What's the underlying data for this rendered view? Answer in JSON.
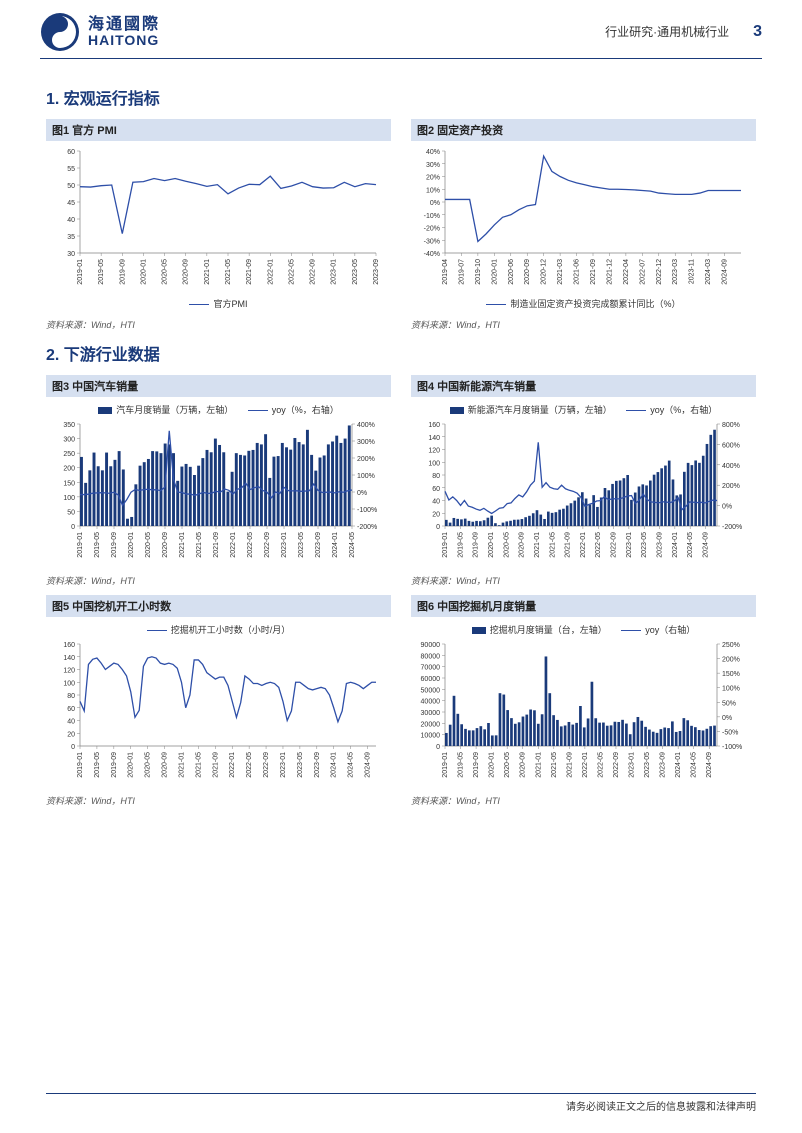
{
  "header": {
    "logo_cn": "海通國際",
    "logo_en": "HAITONG",
    "breadcrumb": "行业研究·通用机械行业",
    "page": "3"
  },
  "colors": {
    "brand": "#1a3a7a",
    "chart_line": "#2e4fa8",
    "chart_bar": "#1a3a7a",
    "title_bar_bg": "#d6e0f0",
    "grid": "#d0d0d0",
    "axis": "#808080",
    "text": "#333333"
  },
  "section1": {
    "title": "1. 宏观运行指标"
  },
  "section2": {
    "title": "2. 下游行业数据"
  },
  "footer": {
    "text": "请务必阅读正文之后的信息披露和法律声明"
  },
  "charts": {
    "c1": {
      "title": "图1  官方 PMI",
      "legend_line": "官方PMI",
      "source": "资料来源：Wind，HTI",
      "type": "line",
      "ylim": [
        30,
        60
      ],
      "ytick_step": 5,
      "x_labels": [
        "2019-01",
        "2019-05",
        "2019-09",
        "2020-01",
        "2020-05",
        "2020-09",
        "2021-01",
        "2021-05",
        "2021-09",
        "2022-01",
        "2022-05",
        "2022-09",
        "2023-01",
        "2023-05",
        "2023-09",
        "2024-01",
        "2024-05",
        "2024-09"
      ],
      "values": [
        49.5,
        49.4,
        49.8,
        50.0,
        35.7,
        50.8,
        51.0,
        51.9,
        51.3,
        51.9,
        51.1,
        50.4,
        49.6,
        50.1,
        47.4,
        49.1,
        50.2,
        50.1,
        52.6,
        49.0,
        49.7,
        50.8,
        49.5,
        49.1,
        49.2,
        50.8,
        49.5,
        50.4,
        50.1
      ]
    },
    "c2": {
      "title": "图2  固定资产投资",
      "legend_line": "制造业固定资产投资完成额累计同比（%）",
      "source": "资料来源：Wind，HTI",
      "type": "line",
      "ylim": [
        -40,
        40
      ],
      "ytick_step": 10,
      "y_percent": true,
      "x_labels": [
        "2019-04",
        "2019-07",
        "2019-10",
        "2020-01",
        "2020-06",
        "2020-09",
        "2020-12",
        "2021-03",
        "2021-06",
        "2021-09",
        "2021-12",
        "2022-04",
        "2022-07",
        "2022-12",
        "2023-03",
        "2023-11",
        "2024-03",
        "2024-09"
      ],
      "values": [
        2,
        2,
        2,
        2,
        -31,
        -25,
        -18,
        -12,
        -10,
        -6,
        -3,
        -2,
        36,
        24,
        20,
        17,
        15,
        13.5,
        12,
        11,
        10,
        10,
        9.8,
        9.5,
        9,
        8.5,
        7,
        6.5,
        6,
        6,
        6,
        7,
        9,
        9,
        9,
        9,
        9
      ]
    },
    "c3": {
      "title": "图3  中国汽车销量",
      "legend_bar": "汽车月度销量（万辆，左轴）",
      "legend_line": "yoy（%，右轴）",
      "source": "资料来源：Wind，HTI",
      "type": "bar+line",
      "ylim": [
        0,
        350
      ],
      "ytick_step": 50,
      "ylim2": [
        -200,
        400
      ],
      "ytick2_step": 100,
      "y2_percent": true,
      "x_labels": [
        "2019-01",
        "2019-05",
        "2019-09",
        "2020-01",
        "2020-05",
        "2020-09",
        "2021-01",
        "2021-05",
        "2021-09",
        "2022-01",
        "2022-05",
        "2022-09",
        "2023-01",
        "2023-05",
        "2023-09",
        "2024-01",
        "2024-05",
        "2024-09"
      ],
      "bar_values": [
        237,
        148,
        191,
        252,
        205,
        191,
        252,
        205,
        227,
        257,
        194,
        25,
        31,
        143,
        207,
        219,
        230,
        257,
        256,
        250,
        283,
        280,
        250,
        155,
        204,
        213,
        203,
        175,
        207,
        233,
        261,
        253,
        300,
        278,
        253,
        118,
        186,
        250,
        244,
        242,
        258,
        261,
        285,
        280,
        315,
        165,
        238,
        240,
        285,
        270,
        262,
        302,
        288,
        280,
        330,
        244,
        190,
        235,
        242,
        280,
        290,
        310,
        285,
        300,
        345
      ],
      "line_values": [
        -15,
        -15,
        -13,
        -7,
        -5,
        -4,
        -5,
        -8,
        -1,
        -18,
        -79,
        -45,
        -1,
        15,
        9,
        14,
        16,
        13,
        13,
        7.5,
        30,
        360,
        74,
        -1,
        -3,
        -12,
        -12,
        -20,
        -12,
        -2,
        -9,
        -7,
        5,
        -2,
        18,
        10,
        -12,
        15,
        24,
        52,
        14,
        25,
        32,
        9,
        -1,
        -35,
        0,
        -9,
        27,
        8.5,
        6.5,
        7,
        4,
        5.5,
        8,
        47,
        9.5,
        -3,
        -1.5,
        -0.5,
        -5,
        1.5,
        -1.5,
        7,
        12
      ]
    },
    "c4": {
      "title": "图4  中国新能源汽车销量",
      "legend_bar": "新能源汽车月度销量（万辆，左轴）",
      "legend_line": "yoy（%，右轴）",
      "source": "资料来源：Wind，HTI",
      "type": "bar+line",
      "ylim": [
        0,
        160
      ],
      "ytick_step": 20,
      "ylim2": [
        -200,
        800
      ],
      "ytick2_step": 200,
      "y2_percent": true,
      "x_labels": [
        "2019-01",
        "2019-05",
        "2019-09",
        "2020-01",
        "2020-05",
        "2020-09",
        "2021-01",
        "2021-05",
        "2021-09",
        "2022-01",
        "2022-05",
        "2022-09",
        "2023-01",
        "2023-05",
        "2023-09",
        "2024-01",
        "2024-05",
        "2024-09"
      ],
      "bar_values": [
        9.6,
        5.3,
        12.6,
        11.2,
        10.4,
        11.6,
        8,
        6.7,
        8,
        7.5,
        9,
        13,
        16.3,
        4.4,
        1.3,
        5.3,
        7.2,
        8.2,
        9.8,
        10,
        10.9,
        13.8,
        16,
        20,
        24.8,
        17.9,
        11,
        22.6,
        20.6,
        21.7,
        25.6,
        27.1,
        32.1,
        35.7,
        39.8,
        45,
        53,
        43.1,
        33.4,
        48.4,
        29.9,
        44.7,
        59.6,
        56,
        66,
        70.8,
        71.4,
        75,
        80,
        41,
        52.5,
        62,
        65.3,
        63.6,
        71.3,
        80.5,
        84.6,
        90.5,
        94.8,
        102.6,
        73,
        48,
        49.5,
        85,
        99,
        95.5,
        102.8,
        99.1,
        110.2,
        128.7,
        143,
        151
      ],
      "line_values": [
        140,
        55,
        86,
        50,
        2,
        50,
        -5,
        -16,
        -34,
        -46,
        -27,
        -54,
        -77,
        -53,
        -26,
        -20,
        20,
        26,
        70,
        105,
        85,
        135,
        200,
        240,
        620,
        180,
        225,
        180,
        165,
        160,
        200,
        165,
        150,
        140,
        122,
        80,
        -6.8,
        10.5,
        23,
        45,
        49,
        87.5,
        59,
        64,
        68,
        65,
        81,
        94,
        98,
        20.5,
        55,
        114,
        60,
        36.5,
        31.5,
        27,
        37.5,
        34,
        30,
        46,
        78,
        -39,
        -6.5,
        36,
        33,
        30,
        32,
        27,
        42,
        54,
        49.5
      ]
    },
    "c5": {
      "title": "图5  中国挖机开工小时数",
      "legend_line": "挖掘机开工小时数（小时/月）",
      "source": "资料来源：Wind，HTI",
      "type": "line",
      "ylim": [
        0,
        160
      ],
      "ytick_step": 20,
      "x_labels": [
        "2019-01",
        "2019-05",
        "2019-09",
        "2020-01",
        "2020-05",
        "2020-09",
        "2021-01",
        "2021-05",
        "2021-09",
        "2022-01",
        "2022-05",
        "2022-09",
        "2023-01",
        "2023-05",
        "2023-09",
        "2024-01",
        "2024-05",
        "2024-09"
      ],
      "values": [
        70,
        55,
        128,
        136,
        138,
        130,
        120,
        125,
        130,
        128,
        120,
        110,
        85,
        45,
        56,
        125,
        138,
        140,
        138,
        130,
        128,
        130,
        128,
        122,
        100,
        60,
        80,
        135,
        135,
        128,
        115,
        110,
        105,
        108,
        108,
        95,
        70,
        45,
        68,
        110,
        105,
        98,
        98,
        95,
        98,
        100,
        98,
        92,
        70,
        40,
        55,
        100,
        100,
        95,
        90,
        88,
        90,
        92,
        90,
        80,
        60,
        38,
        55,
        98,
        100,
        98,
        95,
        90,
        95,
        100,
        100
      ]
    },
    "c6": {
      "title": "图6  中国挖掘机月度销量",
      "legend_bar": "挖掘机月度销量（台，左轴）",
      "legend_line": "yoy（右轴）",
      "source": "资料来源：Wind，HTI",
      "type": "bar+line",
      "ylim": [
        0,
        90000
      ],
      "ytick_step": 10000,
      "ylim2": [
        -100,
        250
      ],
      "ytick2_step": 50,
      "y2_percent": true,
      "x_labels": [
        "2019-01",
        "2019-05",
        "2019-09",
        "2020-01",
        "2020-05",
        "2020-09",
        "2021-01",
        "2021-05",
        "2021-09",
        "2022-01",
        "2022-05",
        "2022-09",
        "2023-01",
        "2023-05",
        "2023-09",
        "2024-01",
        "2024-05",
        "2024-09"
      ],
      "bar_values": [
        11500,
        18800,
        44300,
        28400,
        19200,
        15100,
        13800,
        13800,
        15800,
        17500,
        14700,
        20300,
        9300,
        9400,
        46600,
        45400,
        31700,
        24600,
        19600,
        20900,
        26000,
        27700,
        32200,
        31500,
        19600,
        28000,
        79000,
        46600,
        27200,
        23000,
        17300,
        18100,
        21200,
        18900,
        20400,
        35300,
        16400,
        24300,
        56700,
        24500,
        20600,
        20700,
        17900,
        18200,
        21400,
        21200,
        23100,
        19800,
        10400,
        21000,
        25600,
        22300,
        16900,
        14500,
        12600,
        11600,
        14900,
        16300,
        15800,
        21700,
        12400,
        13200,
        24600,
        22700,
        17800,
        16600,
        14100,
        13700,
        15200,
        17500,
        18000
      ]
    }
  }
}
